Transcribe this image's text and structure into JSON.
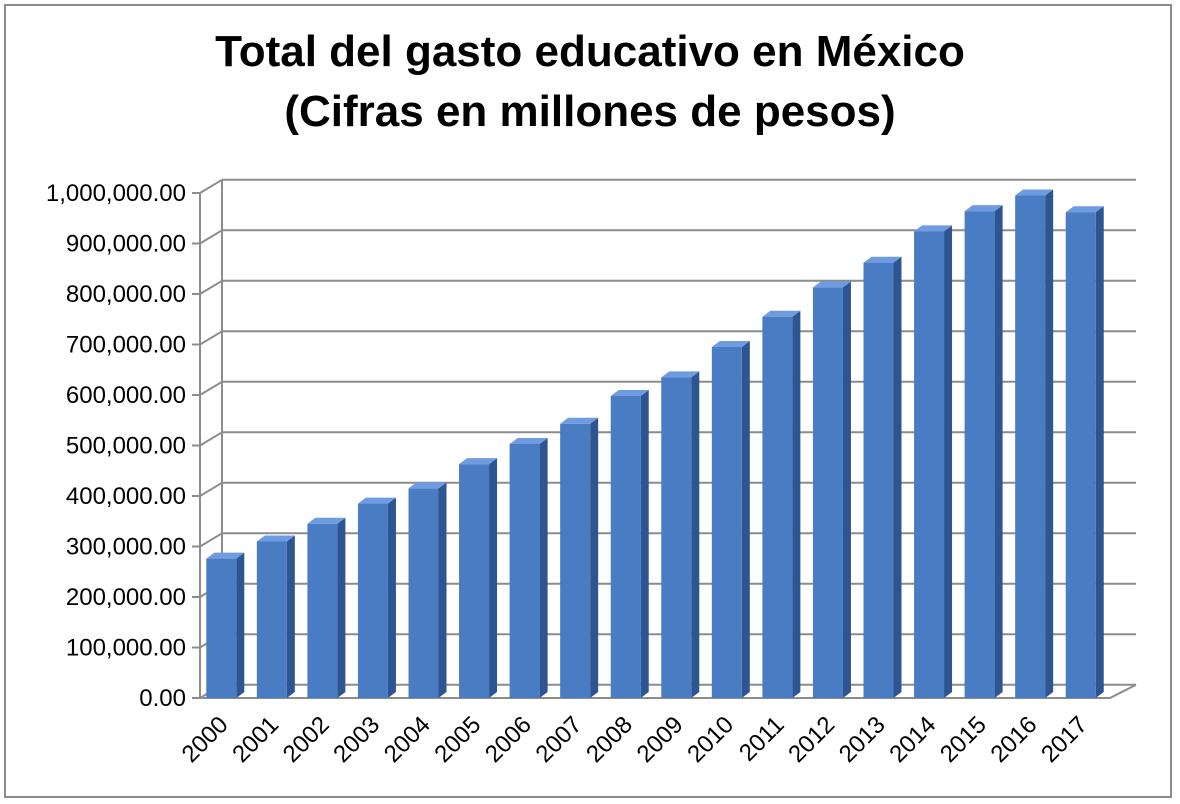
{
  "chart_data": {
    "type": "bar",
    "title": "Total del gasto educativo en México",
    "subtitle": "(Cifras en millones de pesos)",
    "xlabel": "",
    "ylabel": "",
    "categories": [
      "2000",
      "2001",
      "2002",
      "2003",
      "2004",
      "2005",
      "2006",
      "2007",
      "2008",
      "2009",
      "2010",
      "2011",
      "2012",
      "2013",
      "2014",
      "2015",
      "2016",
      "2017"
    ],
    "values": [
      276000,
      310000,
      345000,
      385000,
      415000,
      463000,
      503000,
      543000,
      598000,
      635000,
      695000,
      755000,
      813000,
      862000,
      924000,
      964000,
      995000,
      962000
    ],
    "ylim": [
      0,
      1000000
    ],
    "yticks": [
      0,
      100000,
      200000,
      300000,
      400000,
      500000,
      600000,
      700000,
      800000,
      900000,
      1000000
    ],
    "ytick_labels": [
      "0.00",
      "100,000.00",
      "200,000.00",
      "300,000.00",
      "400,000.00",
      "500,000.00",
      "600,000.00",
      "700,000.00",
      "800,000.00",
      "900,000.00",
      "1,000,000.00"
    ],
    "grid": true,
    "legend": "none",
    "bar_color": "#4a7cc4",
    "bar_side_color": "#2c5591",
    "bar_top_color": "#6f9be0"
  }
}
